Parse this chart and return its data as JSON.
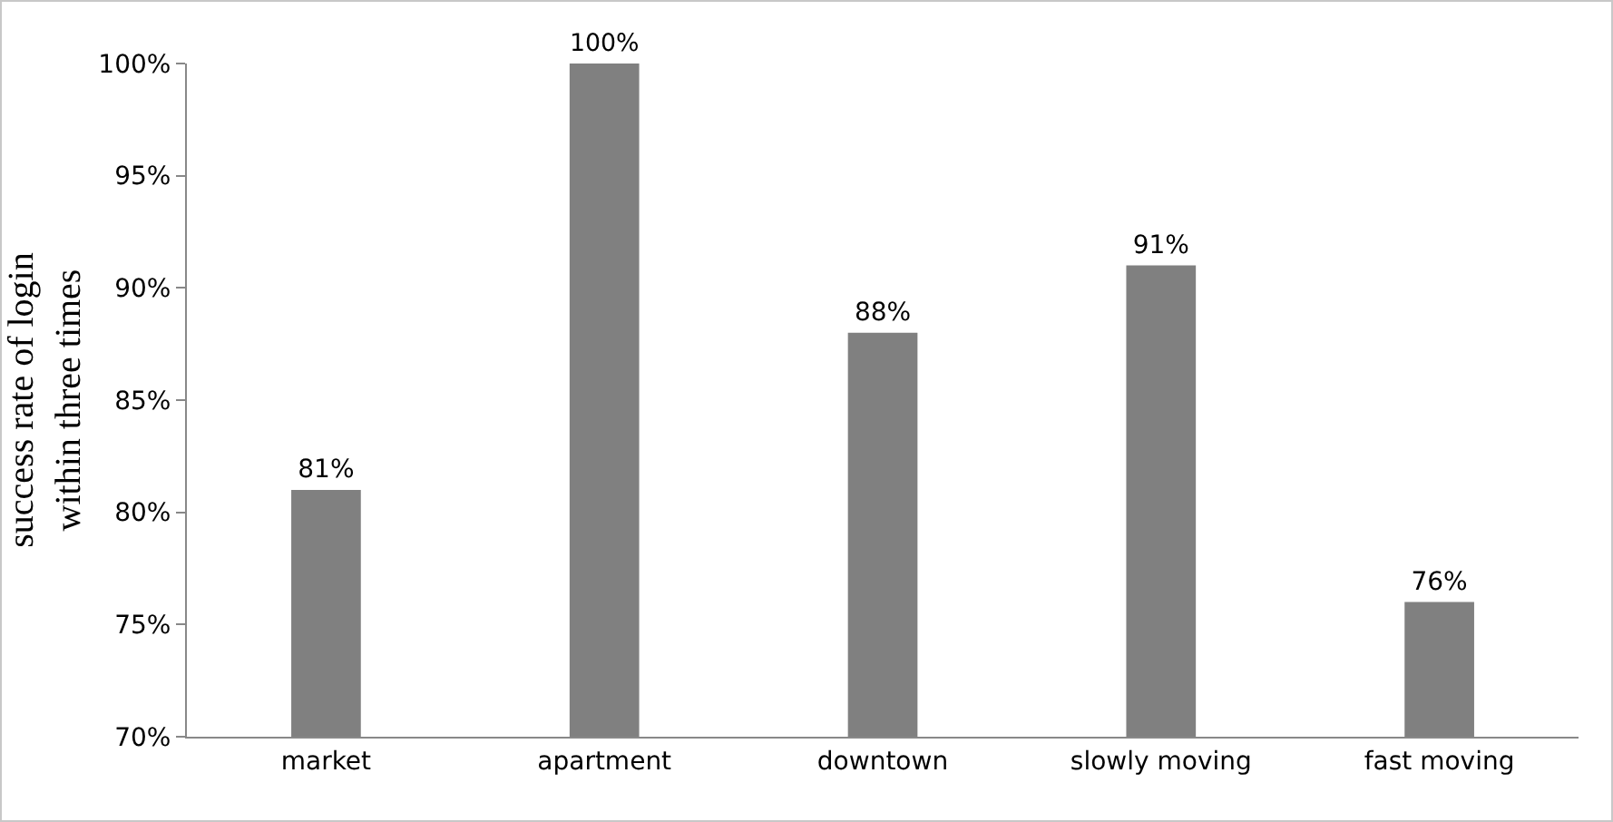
{
  "chart_data": {
    "type": "bar",
    "ylabel": "success rate of login\nwithin three times",
    "categories": [
      "market",
      "apartment",
      "downtown",
      "slowly moving",
      "fast moving"
    ],
    "values": [
      81,
      100,
      88,
      91,
      76
    ],
    "color": "#808080",
    "value_labels": [
      "81%",
      "100%",
      "88%",
      "91%",
      "76%"
    ],
    "ylim": [
      70,
      100
    ],
    "yticks": [
      {
        "value": 70,
        "label": "70%"
      },
      {
        "value": 75,
        "label": "75%"
      },
      {
        "value": 80,
        "label": "80%"
      },
      {
        "value": 85,
        "label": "85%"
      },
      {
        "value": 90,
        "label": "90%"
      },
      {
        "value": 95,
        "label": "95%"
      },
      {
        "value": 100,
        "label": "100%"
      }
    ],
    "grid": false,
    "legend": false
  }
}
